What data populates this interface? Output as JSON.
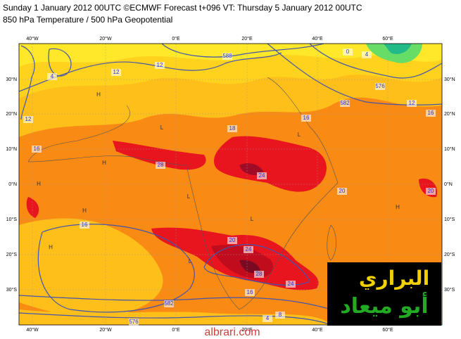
{
  "header": {
    "line1": "Sunday 1 January 2012 00UTC ©ECMWF Forecast t+096 VT: Thursday 5 January 2012 00UTC",
    "line2": "850 hPa Temperature / 500 hPa Geopotential"
  },
  "longitude_labels": [
    "40°W",
    "20°W",
    "0°E",
    "20°E",
    "40°E",
    "60°E"
  ],
  "latitude_labels": [
    "30°N",
    "20°N",
    "10°N",
    "0°N",
    "10°S",
    "20°S",
    "30°S"
  ],
  "contour_labels": [
    4,
    12,
    12,
    12,
    16,
    16,
    18,
    16,
    28,
    24,
    20,
    24,
    28,
    24,
    16,
    8,
    4,
    582,
    576,
    588,
    582,
    576,
    0,
    4,
    12,
    16,
    20,
    20
  ],
  "pressure_centres": [
    "H",
    "H",
    "H",
    "L",
    "L",
    "H",
    "L",
    "L",
    "H",
    "L",
    "H"
  ],
  "logo": {
    "line1": "البراري",
    "line2": "أبو ميعاد"
  },
  "watermark": "albrari.com"
}
